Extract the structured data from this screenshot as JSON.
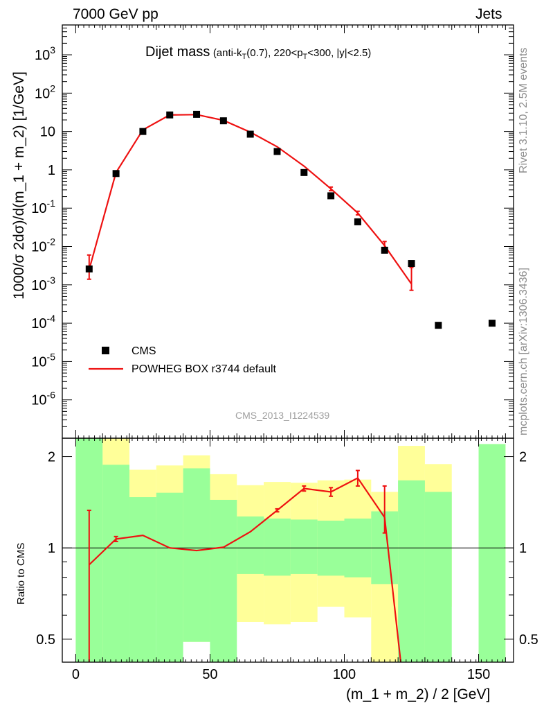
{
  "header": {
    "left": "7000 GeV pp",
    "right": "Jets"
  },
  "side": {
    "rivet": "Rivet 3.1.10,  2.5M events",
    "source": "mcplots.cern.ch [arXiv:1306.3436]"
  },
  "title": {
    "main": "Dijet mass",
    "sub": "(anti-kT(0.7), 220<pT<300, |y|<2.5)"
  },
  "ylabel_top": "1000/σ 2dσ)/d(m_1 + m_2) [1/GeV]",
  "ylabel_bottom": "Ratio to CMS",
  "xlabel": "(m_1 + m_2) / 2 [GeV]",
  "watermark": "CMS_2013_I1224539",
  "legend": {
    "data": "CMS",
    "mc": "POWHEG BOX r3744 default"
  },
  "colors": {
    "mc": "#ee1111",
    "band_inner": "#99ff99",
    "band_outer": "#ffff99",
    "data": "#000000"
  },
  "chart_data": [
    {
      "type": "scatter",
      "title": "Dijet mass (anti-kT(0.7), 220<pT<300, |y|<2.5)",
      "xlabel": "(m_1 + m_2) / 2 [GeV]",
      "ylabel": "1000/σ 2dσ)/d(m_1 + m_2) [1/GeV]",
      "yscale": "log",
      "xlim": [
        -5,
        163
      ],
      "ylim": [
        1e-07,
        6000
      ],
      "y_ticks": [
        "10^-6",
        "10^-5",
        "10^-4",
        "10^-3",
        "10^-2",
        "10^-1",
        "1",
        "10",
        "10^2",
        "10^3"
      ],
      "x_bins": [
        [
          0,
          10
        ],
        [
          10,
          20
        ],
        [
          20,
          30
        ],
        [
          30,
          40
        ],
        [
          40,
          50
        ],
        [
          50,
          60
        ],
        [
          60,
          70
        ],
        [
          70,
          80
        ],
        [
          80,
          90
        ],
        [
          90,
          100
        ],
        [
          100,
          110
        ],
        [
          110,
          120
        ],
        [
          120,
          130
        ],
        [
          130,
          140
        ],
        [
          150,
          160
        ]
      ],
      "series": [
        {
          "name": "CMS",
          "x": [
            5,
            15,
            25,
            35,
            45,
            55,
            65,
            75,
            85,
            95,
            105,
            115,
            125,
            135,
            155
          ],
          "y": [
            0.0026,
            0.8,
            10,
            27,
            28,
            19,
            8.5,
            3.0,
            0.85,
            0.21,
            0.044,
            0.008,
            0.0036,
            8.8e-05,
            0.0001
          ]
        },
        {
          "name": "POWHEG BOX r3744 default",
          "x": [
            5,
            15,
            25,
            35,
            45,
            55,
            65,
            75,
            85,
            95,
            105,
            115,
            125
          ],
          "y": [
            0.0025,
            0.85,
            11,
            27,
            27.5,
            19.5,
            9.6,
            4.0,
            1.25,
            0.32,
            0.075,
            0.0105,
            0.00105
          ],
          "err_lo": [
            0.0011,
            0,
            0,
            0,
            0,
            0,
            0,
            0,
            0,
            0.035,
            0.008,
            0.003,
            0.00033
          ],
          "err_hi": [
            0.0035,
            0,
            0,
            0,
            0,
            0,
            0,
            0,
            0,
            0.035,
            0.008,
            0.003,
            0.0018
          ]
        }
      ]
    },
    {
      "type": "line",
      "ylabel": "Ratio to CMS",
      "yscale": "log",
      "ylim": [
        0.42,
        2.3
      ],
      "y_ticks": [
        "0.5",
        "1",
        "2"
      ],
      "x_ticks": [
        "0",
        "50",
        "100",
        "150"
      ],
      "bands": {
        "x_bins": [
          [
            0,
            10
          ],
          [
            10,
            20
          ],
          [
            20,
            30
          ],
          [
            30,
            40
          ],
          [
            40,
            50
          ],
          [
            50,
            60
          ],
          [
            60,
            70
          ],
          [
            70,
            80
          ],
          [
            80,
            90
          ],
          [
            90,
            100
          ],
          [
            100,
            110
          ],
          [
            110,
            120
          ],
          [
            120,
            130
          ],
          [
            130,
            140
          ],
          [
            150,
            160
          ]
        ],
        "inner_lo": [
          0.3,
          0.3,
          0.3,
          0.3,
          0.49,
          0.3,
          0.82,
          0.81,
          0.82,
          0.81,
          0.8,
          0.76,
          0.3,
          0.3,
          0.3
        ],
        "inner_hi": [
          3.0,
          1.88,
          1.47,
          1.52,
          1.83,
          1.44,
          1.27,
          1.25,
          1.24,
          1.23,
          1.25,
          1.32,
          1.67,
          1.53,
          2.2
        ],
        "outer_lo": [
          0.3,
          0.3,
          0.71,
          0.64,
          0.49,
          0.71,
          0.57,
          0.56,
          0.57,
          0.64,
          0.59,
          0.41,
          0.3,
          0.64,
          0.3
        ],
        "outer_hi": [
          3.0,
          3.0,
          1.81,
          1.87,
          2.02,
          1.75,
          1.61,
          1.65,
          1.64,
          1.67,
          1.68,
          1.53,
          2.17,
          1.89,
          2.2
        ]
      },
      "series": [
        {
          "name": "POWHEG BOX r3744 default",
          "x": [
            5,
            15,
            25,
            35,
            45,
            55,
            65,
            75,
            85,
            95,
            105,
            115,
            121,
            125
          ],
          "y": [
            0.88,
            1.07,
            1.1,
            1.0,
            0.98,
            1.005,
            1.13,
            1.33,
            1.57,
            1.53,
            1.7,
            1.26,
            0.42,
            0.3
          ],
          "err_lo": [
            0.5,
            0.02,
            0,
            0,
            0,
            0,
            0,
            0.015,
            0.03,
            0.05,
            0.1,
            0.14,
            0,
            0
          ],
          "err_hi": [
            0.45,
            0.02,
            0,
            0,
            0,
            0,
            0,
            0.015,
            0.03,
            0.05,
            0.1,
            0.34,
            0,
            0
          ]
        }
      ]
    }
  ]
}
